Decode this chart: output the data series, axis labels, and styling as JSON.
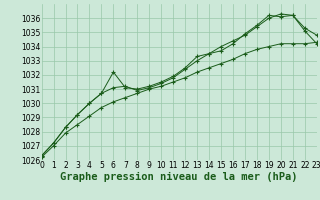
{
  "bg_color": "#cce8d8",
  "grid_color": "#99c8aa",
  "line_color": "#1a5c1a",
  "title": "Graphe pression niveau de la mer (hPa)",
  "ylim": [
    1026,
    1037
  ],
  "xlim": [
    0,
    23
  ],
  "yticks": [
    1026,
    1027,
    1028,
    1029,
    1030,
    1031,
    1032,
    1033,
    1034,
    1035,
    1036
  ],
  "xticks": [
    0,
    1,
    2,
    3,
    4,
    5,
    6,
    7,
    8,
    9,
    10,
    11,
    12,
    13,
    14,
    15,
    16,
    17,
    18,
    19,
    20,
    21,
    22,
    23
  ],
  "series1_x": [
    0,
    1,
    2,
    3,
    4,
    5,
    6,
    7,
    8,
    9,
    10,
    11,
    12,
    13,
    14,
    15,
    16,
    17,
    18,
    19,
    20,
    21,
    22,
    23
  ],
  "series1_y": [
    1026.3,
    1027.2,
    1028.3,
    1029.2,
    1030.0,
    1030.7,
    1032.2,
    1031.1,
    1031.0,
    1031.2,
    1031.5,
    1031.9,
    1032.5,
    1033.3,
    1033.5,
    1033.7,
    1034.2,
    1034.9,
    1035.5,
    1036.2,
    1036.1,
    1036.2,
    1035.1,
    1034.2
  ],
  "series2_x": [
    0,
    1,
    2,
    3,
    4,
    5,
    6,
    7,
    8,
    9,
    10,
    11,
    12,
    13,
    14,
    15,
    16,
    17,
    18,
    19,
    20,
    21,
    22,
    23
  ],
  "series2_y": [
    1026.3,
    1027.2,
    1028.3,
    1029.2,
    1030.0,
    1030.7,
    1031.1,
    1031.2,
    1030.9,
    1031.1,
    1031.4,
    1031.8,
    1032.4,
    1033.0,
    1033.5,
    1034.0,
    1034.4,
    1034.8,
    1035.4,
    1036.0,
    1036.3,
    1036.2,
    1035.3,
    1034.8
  ],
  "series3_x": [
    0,
    1,
    2,
    3,
    4,
    5,
    6,
    7,
    8,
    9,
    10,
    11,
    12,
    13,
    14,
    15,
    16,
    17,
    18,
    19,
    20,
    21,
    22,
    23
  ],
  "series3_y": [
    1026.2,
    1027.0,
    1027.9,
    1028.5,
    1029.1,
    1029.7,
    1030.1,
    1030.4,
    1030.7,
    1031.0,
    1031.2,
    1031.5,
    1031.8,
    1032.2,
    1032.5,
    1032.8,
    1033.1,
    1033.5,
    1033.8,
    1034.0,
    1034.2,
    1034.2,
    1034.2,
    1034.3
  ],
  "tick_fontsize": 5.5,
  "label_fontsize": 7.5
}
